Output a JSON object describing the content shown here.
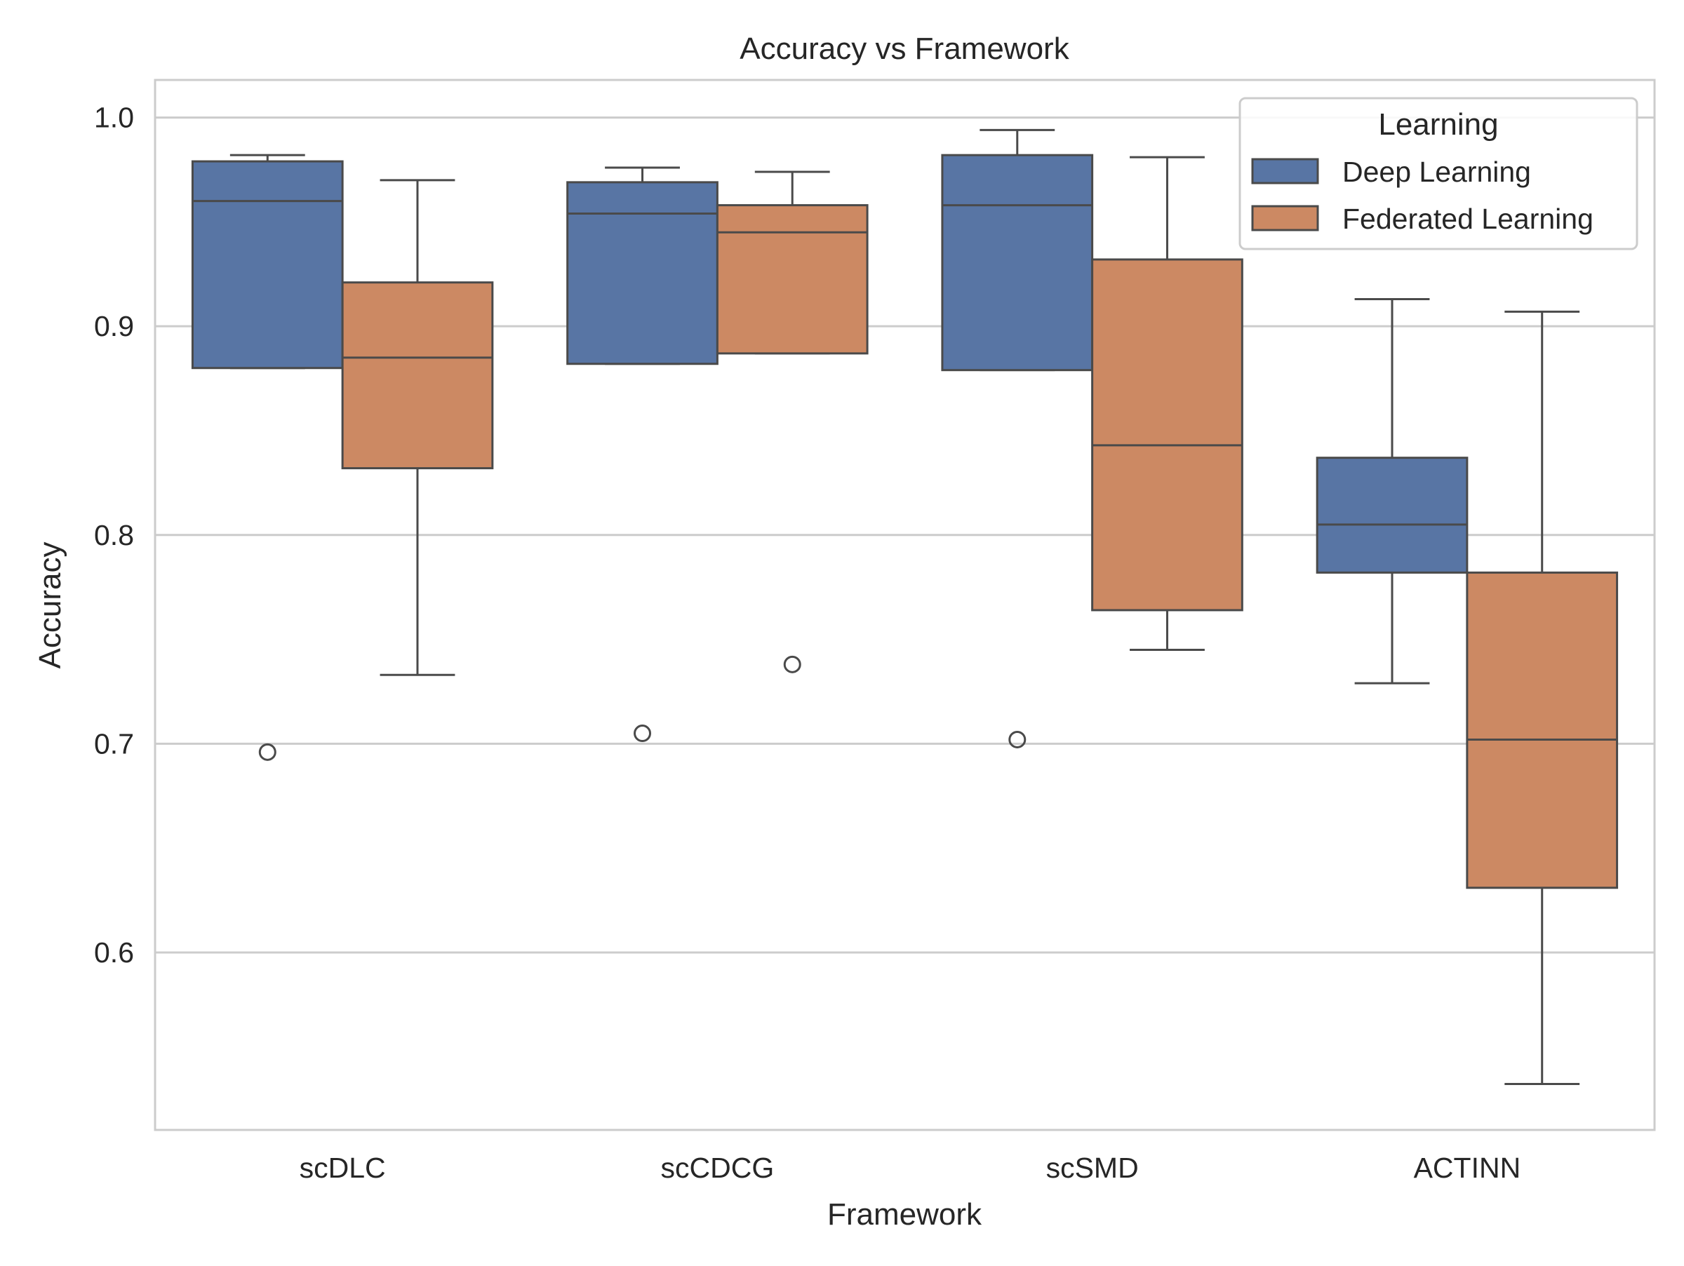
{
  "chart_data": {
    "type": "box",
    "title": "Accuracy vs Framework",
    "xlabel": "Framework",
    "ylabel": "Accuracy",
    "ylim": [
      0.515,
      1.018
    ],
    "yticks": [
      0.6,
      0.7,
      0.8,
      0.9,
      1.0
    ],
    "ytick_labels": [
      "0.6",
      "0.7",
      "0.8",
      "0.9",
      "1.0"
    ],
    "grid": "horizontal",
    "legend": {
      "title": "Learning",
      "placement": "top-right"
    },
    "categories": [
      "scDLC",
      "scCDCG",
      "scSMD",
      "ACTINN"
    ],
    "series": [
      {
        "name": "Deep Learning",
        "color": "#5875a4",
        "boxes": [
          {
            "whisker_low": 0.88,
            "q1": 0.88,
            "median": 0.96,
            "q3": 0.979,
            "whisker_high": 0.982,
            "outliers": [
              0.696
            ]
          },
          {
            "whisker_low": 0.882,
            "q1": 0.882,
            "median": 0.954,
            "q3": 0.969,
            "whisker_high": 0.976,
            "outliers": [
              0.705
            ]
          },
          {
            "whisker_low": 0.879,
            "q1": 0.879,
            "median": 0.958,
            "q3": 0.982,
            "whisker_high": 0.994,
            "outliers": [
              0.702
            ]
          },
          {
            "whisker_low": 0.729,
            "q1": 0.782,
            "median": 0.805,
            "q3": 0.837,
            "whisker_high": 0.913,
            "outliers": []
          }
        ]
      },
      {
        "name": "Federated Learning",
        "color": "#cc8963",
        "boxes": [
          {
            "whisker_low": 0.733,
            "q1": 0.832,
            "median": 0.885,
            "q3": 0.921,
            "whisker_high": 0.97,
            "outliers": []
          },
          {
            "whisker_low": 0.887,
            "q1": 0.887,
            "median": 0.945,
            "q3": 0.958,
            "whisker_high": 0.974,
            "outliers": [
              0.738
            ]
          },
          {
            "whisker_low": 0.745,
            "q1": 0.764,
            "median": 0.843,
            "q3": 0.932,
            "whisker_high": 0.981,
            "outliers": []
          },
          {
            "whisker_low": 0.537,
            "q1": 0.631,
            "median": 0.702,
            "q3": 0.782,
            "whisker_high": 0.907,
            "outliers": []
          }
        ]
      }
    ]
  }
}
